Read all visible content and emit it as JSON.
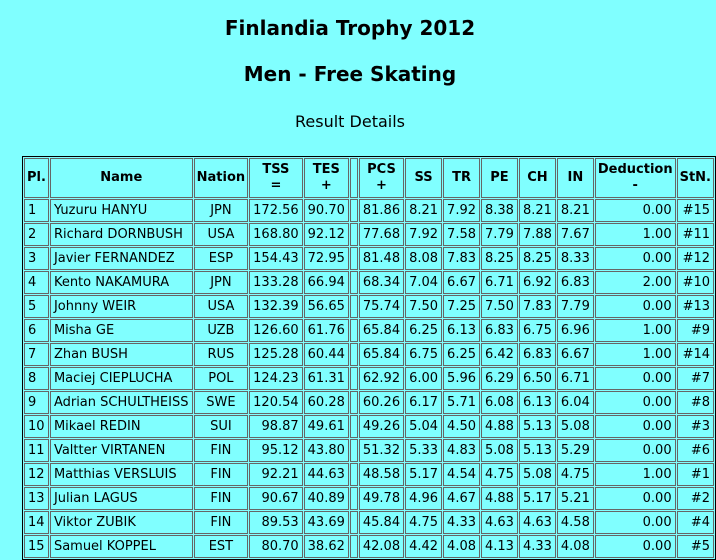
{
  "header": {
    "title": "Finlandia Trophy 2012",
    "subtitle": "Men - Free Skating",
    "section": "Result Details"
  },
  "table": {
    "columns": [
      {
        "label": "Pl."
      },
      {
        "label": "Name"
      },
      {
        "label": "Nation"
      },
      {
        "label": "TSS",
        "sign": "="
      },
      {
        "label": "TES",
        "sign": "+"
      },
      {
        "label": null
      },
      {
        "label": "PCS",
        "sign": "+"
      },
      {
        "label": "SS"
      },
      {
        "label": "TR"
      },
      {
        "label": "PE"
      },
      {
        "label": "CH"
      },
      {
        "label": "IN"
      },
      {
        "label": "Deduction",
        "sign": "-"
      },
      {
        "label": "StN."
      }
    ],
    "rows": [
      [
        "1",
        "Yuzuru HANYU",
        "JPN",
        "172.56",
        "90.70",
        null,
        "81.86",
        "8.21",
        "7.92",
        "8.38",
        "8.21",
        "8.21",
        "0.00",
        "#15"
      ],
      [
        "2",
        "Richard DORNBUSH",
        "USA",
        "168.80",
        "92.12",
        null,
        "77.68",
        "7.92",
        "7.58",
        "7.79",
        "7.88",
        "7.67",
        "1.00",
        "#11"
      ],
      [
        "3",
        "Javier FERNANDEZ",
        "ESP",
        "154.43",
        "72.95",
        null,
        "81.48",
        "8.08",
        "7.83",
        "8.25",
        "8.25",
        "8.33",
        "0.00",
        "#12"
      ],
      [
        "4",
        "Kento NAKAMURA",
        "JPN",
        "133.28",
        "66.94",
        null,
        "68.34",
        "7.04",
        "6.67",
        "6.71",
        "6.92",
        "6.83",
        "2.00",
        "#10"
      ],
      [
        "5",
        "Johnny WEIR",
        "USA",
        "132.39",
        "56.65",
        null,
        "75.74",
        "7.50",
        "7.25",
        "7.50",
        "7.83",
        "7.79",
        "0.00",
        "#13"
      ],
      [
        "6",
        "Misha GE",
        "UZB",
        "126.60",
        "61.76",
        null,
        "65.84",
        "6.25",
        "6.13",
        "6.83",
        "6.75",
        "6.96",
        "1.00",
        "#9"
      ],
      [
        "7",
        "Zhan BUSH",
        "RUS",
        "125.28",
        "60.44",
        null,
        "65.84",
        "6.75",
        "6.25",
        "6.42",
        "6.83",
        "6.67",
        "1.00",
        "#14"
      ],
      [
        "8",
        "Maciej CIEPLUCHA",
        "POL",
        "124.23",
        "61.31",
        null,
        "62.92",
        "6.00",
        "5.96",
        "6.29",
        "6.50",
        "6.71",
        "0.00",
        "#7"
      ],
      [
        "9",
        "Adrian SCHULTHEISS",
        "SWE",
        "120.54",
        "60.28",
        null,
        "60.26",
        "6.17",
        "5.71",
        "6.08",
        "6.13",
        "6.04",
        "0.00",
        "#8"
      ],
      [
        "10",
        "Mikael REDIN",
        "SUI",
        "98.87",
        "49.61",
        null,
        "49.26",
        "5.04",
        "4.50",
        "4.88",
        "5.13",
        "5.08",
        "0.00",
        "#3"
      ],
      [
        "11",
        "Valtter VIRTANEN",
        "FIN",
        "95.12",
        "43.80",
        null,
        "51.32",
        "5.33",
        "4.83",
        "5.08",
        "5.13",
        "5.29",
        "0.00",
        "#6"
      ],
      [
        "12",
        "Matthias VERSLUIS",
        "FIN",
        "92.21",
        "44.63",
        null,
        "48.58",
        "5.17",
        "4.54",
        "4.75",
        "5.08",
        "4.75",
        "1.00",
        "#1"
      ],
      [
        "13",
        "Julian LAGUS",
        "FIN",
        "90.67",
        "40.89",
        null,
        "49.78",
        "4.96",
        "4.67",
        "4.88",
        "5.17",
        "5.21",
        "0.00",
        "#2"
      ],
      [
        "14",
        "Viktor ZUBIK",
        "FIN",
        "89.53",
        "43.69",
        null,
        "45.84",
        "4.75",
        "4.33",
        "4.63",
        "4.63",
        "4.58",
        "0.00",
        "#4"
      ],
      [
        "15",
        "Samuel KOPPEL",
        "EST",
        "80.70",
        "38.62",
        null,
        "42.08",
        "4.42",
        "4.08",
        "4.13",
        "4.33",
        "4.08",
        "0.00",
        "#5"
      ]
    ]
  }
}
